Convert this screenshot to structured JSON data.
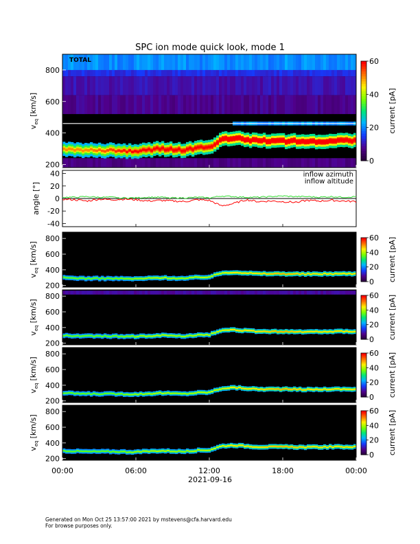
{
  "figure": {
    "title": "SPC ion mode quick look, mode 1",
    "date_label": "2021-09-16",
    "time_ticks": [
      "00:00",
      "06:00",
      "12:00",
      "18:00",
      "00:00"
    ]
  },
  "footer": {
    "line1": "Generated on Mon Oct 25 13:57:00 2021 by mstevens@cfa.harvard.edu",
    "line2": "For browse purposes only."
  },
  "colors": {
    "inflow_azimuth": "#ff0000",
    "inflow_altitude": "#33dd33",
    "background_panel": "#000000",
    "spectrogram_colormap": "rainbow (dark violet to red)"
  },
  "chart_data": [
    {
      "type": "heatmap",
      "panel_label": "TOTAL",
      "ylabel": "v_eq [km/s]",
      "ylabel_main": "v",
      "ylabel_sub": "eq",
      "ylabel_unit": "[km/s]",
      "ylim": [
        180,
        900
      ],
      "yticks": [
        200,
        400,
        600,
        800
      ],
      "colorbar_label": "current [pA]",
      "colorbar_range": [
        0,
        60
      ],
      "colorbar_ticks": [
        0,
        20,
        40,
        60
      ],
      "x_hours": [
        0,
        2,
        4,
        6,
        8,
        10,
        11,
        12,
        13,
        14,
        16,
        18,
        20,
        22,
        24
      ],
      "peak_velocity_km_s": [
        300,
        290,
        290,
        285,
        300,
        290,
        305,
        310,
        360,
        370,
        350,
        350,
        345,
        350,
        350
      ],
      "peak_current_pA": [
        40,
        40,
        45,
        50,
        55,
        55,
        55,
        55,
        60,
        60,
        60,
        60,
        60,
        60,
        58
      ],
      "secondary_band_km_s": 460,
      "secondary_band_range_hours": [
        14,
        24
      ]
    },
    {
      "type": "line",
      "ylabel": "angle [°]",
      "ylim": [
        -45,
        45
      ],
      "yticks": [
        -40,
        -20,
        0,
        20,
        40
      ],
      "series": [
        {
          "name": "inflow azimuth",
          "x_hours": [
            0,
            1,
            2,
            3,
            4,
            5,
            6,
            7,
            8,
            9,
            10,
            11,
            12,
            13,
            14,
            15,
            16,
            17,
            18,
            19,
            20,
            21,
            22,
            23,
            24
          ],
          "values": [
            -1,
            -2,
            -4,
            -1,
            -2,
            -1,
            -2,
            -4,
            -3,
            -4,
            -5,
            -2,
            -3,
            -12,
            -8,
            -2,
            -5,
            -4,
            -5,
            -6,
            -3,
            -4,
            -3,
            -4,
            -5
          ]
        },
        {
          "name": "inflow altitude",
          "x_hours": [
            0,
            1,
            2,
            3,
            4,
            5,
            6,
            7,
            8,
            9,
            10,
            11,
            12,
            13,
            14,
            15,
            16,
            17,
            18,
            19,
            20,
            21,
            22,
            23,
            24
          ],
          "values": [
            2,
            2,
            3,
            2,
            2,
            1,
            1,
            2,
            2,
            1,
            1,
            2,
            1,
            4,
            3,
            2,
            2,
            3,
            4,
            3,
            3,
            2,
            3,
            2,
            3
          ]
        }
      ]
    },
    {
      "type": "heatmap",
      "ylabel": "v_eq [km/s]",
      "ylim": [
        180,
        880
      ],
      "yticks": [
        200,
        400,
        600,
        800
      ],
      "colorbar_label": "current [pA]",
      "colorbar_range": [
        0,
        60
      ],
      "colorbar_ticks": [
        0,
        20,
        40,
        60
      ],
      "x_hours": [
        0,
        2,
        4,
        6,
        8,
        10,
        11,
        12,
        13,
        14,
        16,
        18,
        20,
        22,
        24
      ],
      "peak_velocity_km_s": [
        300,
        290,
        290,
        285,
        300,
        290,
        305,
        310,
        360,
        370,
        350,
        350,
        345,
        350,
        350
      ],
      "peak_current_pA": [
        25,
        25,
        25,
        28,
        30,
        28,
        30,
        30,
        32,
        35,
        35,
        38,
        35,
        35,
        35
      ]
    },
    {
      "type": "heatmap",
      "ylabel": "v_eq [km/s]",
      "ylim": [
        180,
        880
      ],
      "yticks": [
        200,
        400,
        600,
        800
      ],
      "colorbar_label": "current [pA]",
      "colorbar_range": [
        0,
        60
      ],
      "colorbar_ticks": [
        0,
        20,
        40,
        60
      ],
      "x_hours": [
        0,
        2,
        4,
        6,
        8,
        10,
        11,
        12,
        13,
        14,
        16,
        18,
        20,
        22,
        24
      ],
      "peak_velocity_km_s": [
        300,
        290,
        290,
        285,
        300,
        290,
        305,
        310,
        360,
        370,
        350,
        350,
        345,
        350,
        350
      ],
      "peak_current_pA": [
        25,
        25,
        25,
        28,
        30,
        28,
        30,
        30,
        32,
        35,
        35,
        38,
        35,
        35,
        35
      ],
      "background_band_km_s": 840
    },
    {
      "type": "heatmap",
      "ylabel": "v_eq [km/s]",
      "ylim": [
        180,
        880
      ],
      "yticks": [
        200,
        400,
        600,
        800
      ],
      "colorbar_label": "current [pA]",
      "colorbar_range": [
        0,
        60
      ],
      "colorbar_ticks": [
        0,
        20,
        40,
        60
      ],
      "x_hours": [
        0,
        2,
        4,
        6,
        8,
        10,
        11,
        12,
        13,
        14,
        16,
        18,
        20,
        22,
        24
      ],
      "peak_velocity_km_s": [
        300,
        290,
        290,
        285,
        300,
        290,
        305,
        310,
        360,
        370,
        350,
        350,
        345,
        350,
        350
      ],
      "peak_current_pA": [
        25,
        25,
        25,
        28,
        30,
        28,
        30,
        30,
        32,
        35,
        35,
        38,
        35,
        35,
        35
      ]
    },
    {
      "type": "heatmap",
      "ylabel": "v_eq [km/s]",
      "ylim": [
        180,
        880
      ],
      "yticks": [
        200,
        400,
        600,
        800
      ],
      "colorbar_label": "current [pA]",
      "colorbar_range": [
        0,
        60
      ],
      "colorbar_ticks": [
        0,
        20,
        40,
        60
      ],
      "x_hours": [
        0,
        2,
        4,
        6,
        8,
        10,
        11,
        12,
        13,
        14,
        16,
        18,
        20,
        22,
        24
      ],
      "peak_velocity_km_s": [
        300,
        290,
        290,
        285,
        300,
        290,
        305,
        310,
        360,
        370,
        350,
        350,
        345,
        350,
        350
      ],
      "peak_current_pA": [
        25,
        25,
        25,
        28,
        30,
        28,
        30,
        30,
        32,
        35,
        35,
        38,
        35,
        35,
        35
      ]
    }
  ]
}
